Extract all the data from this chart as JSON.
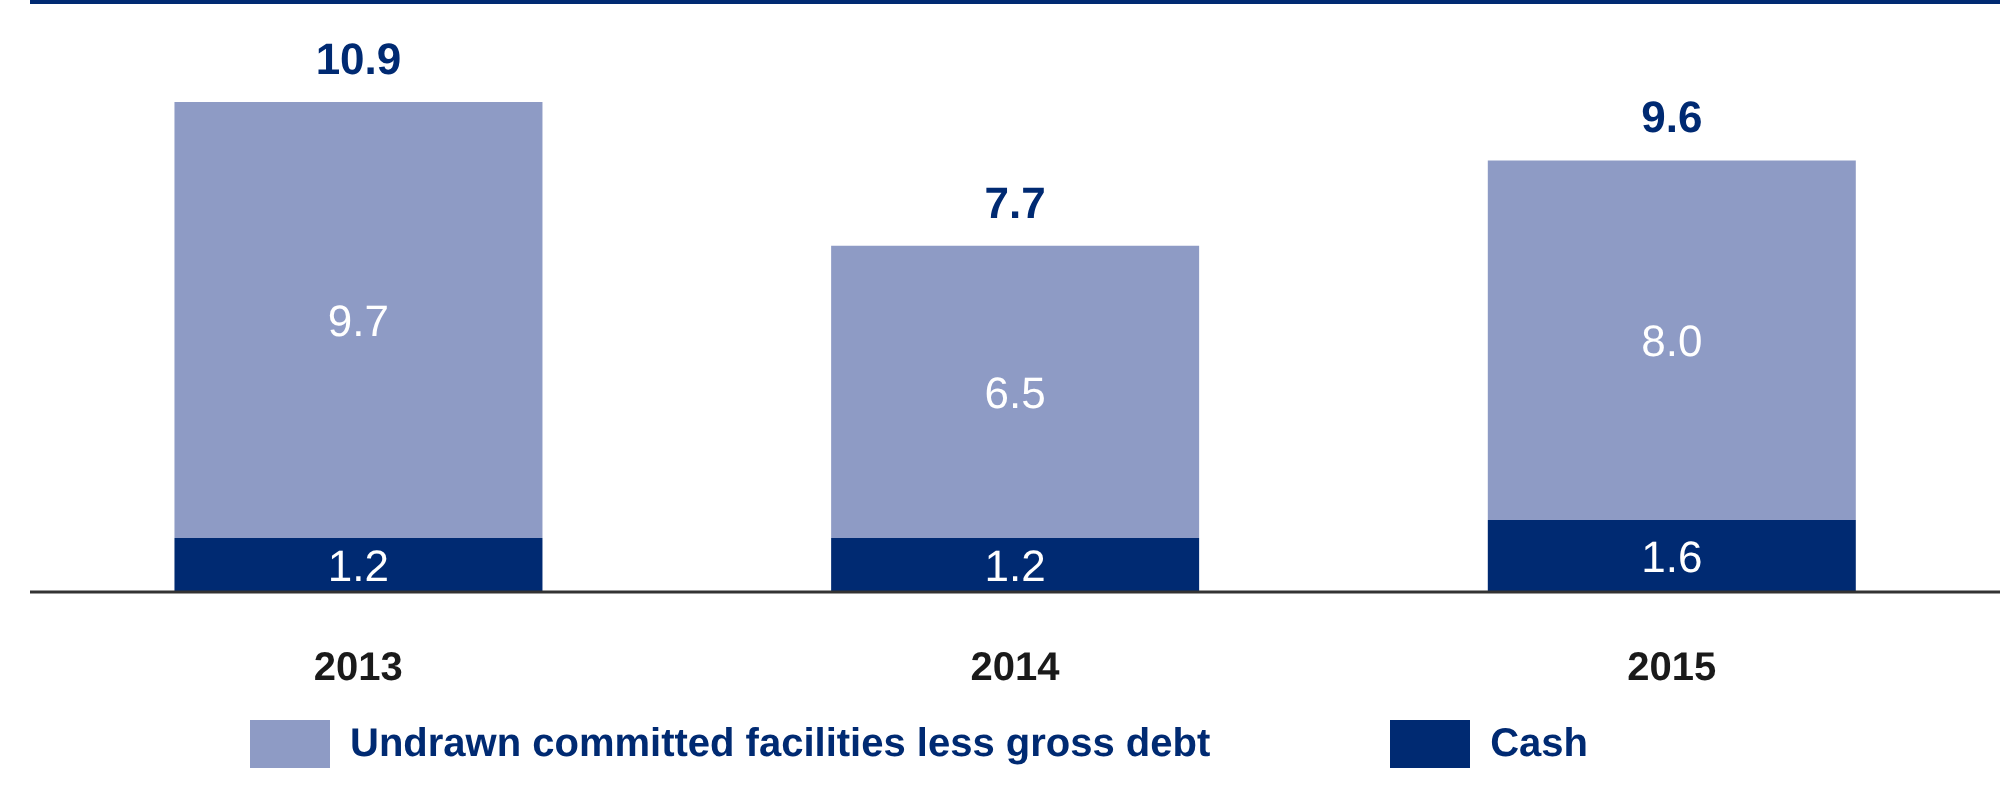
{
  "chart_data": {
    "type": "bar",
    "stacked": true,
    "categories": [
      "2013",
      "2014",
      "2015"
    ],
    "series": [
      {
        "name": "Cash",
        "color": "#002a72",
        "values": [
          1.2,
          1.2,
          1.6
        ],
        "value_labels": [
          "1.2",
          "1.2",
          "1.6"
        ]
      },
      {
        "name": "Undrawn committed facilities less gross debt",
        "color": "#8e9bc5",
        "values": [
          9.7,
          6.5,
          8.0
        ],
        "value_labels": [
          "9.7",
          "6.5",
          "8.0"
        ]
      }
    ],
    "totals": [
      "10.9",
      "7.7",
      "9.6"
    ],
    "legend": "bottom"
  }
}
